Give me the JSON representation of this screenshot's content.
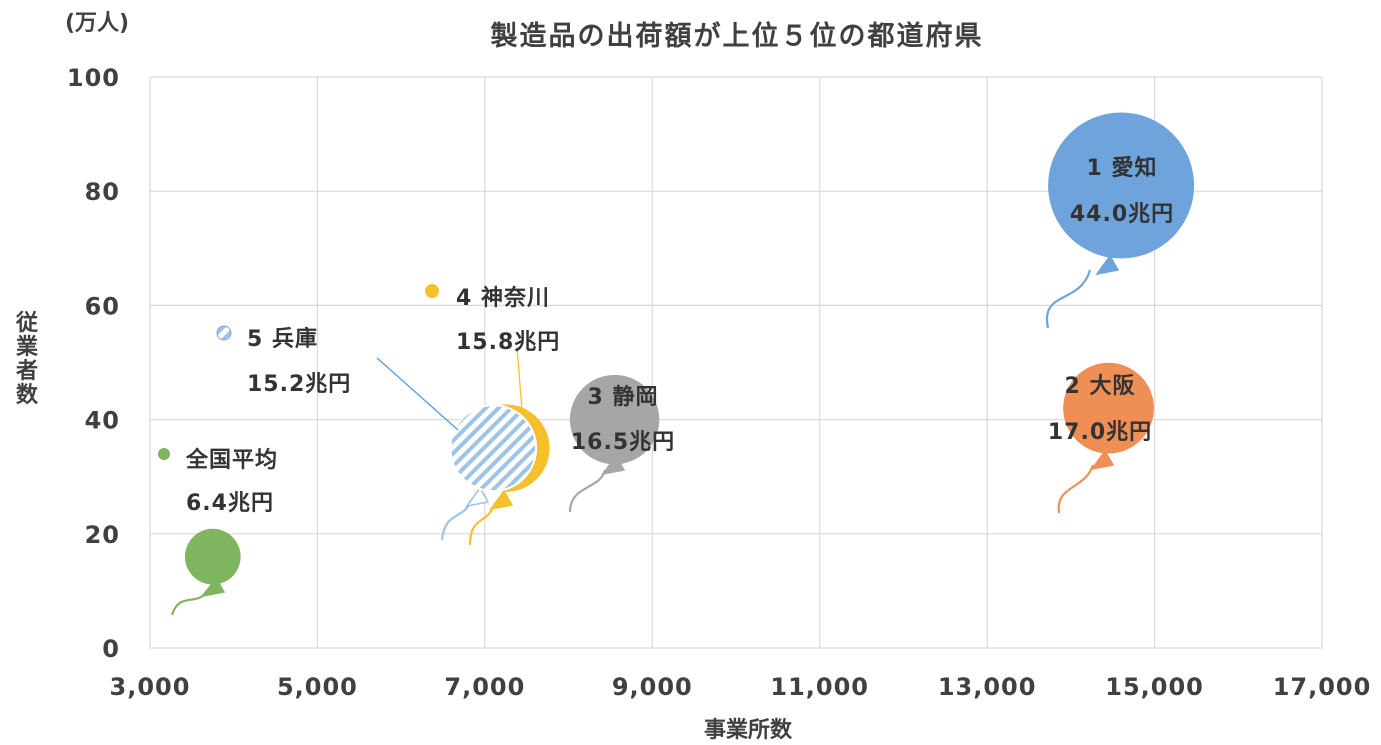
{
  "chart_data": {
    "type": "bubble",
    "title": "製造品の出荷額が上位５位の都道府県",
    "xlabel": "事業所数",
    "ylabel": "従業者数",
    "yunit": "(万人)",
    "xlim": [
      3000,
      17000
    ],
    "ylim": [
      0,
      100
    ],
    "x_ticks": [
      3000,
      5000,
      7000,
      9000,
      11000,
      13000,
      15000,
      17000
    ],
    "x_tick_labels": [
      "3,000",
      "5,000",
      "7,000",
      "9,000",
      "11,000",
      "13,000",
      "15,000",
      "17,000"
    ],
    "y_ticks": [
      0,
      20,
      40,
      60,
      80,
      100
    ],
    "y_tick_labels": [
      "0",
      "20",
      "40",
      "60",
      "80",
      "100"
    ],
    "grid": true,
    "legend": "none",
    "series": [
      {
        "key": "aichi",
        "name": "1 愛知",
        "shipment": "44.0兆円",
        "x": 14600,
        "y": 81,
        "size": 44.0,
        "color": "#6fa3dc",
        "pattern": "solid"
      },
      {
        "key": "osaka",
        "name": "2 大阪",
        "shipment": "17.0兆円",
        "x": 14450,
        "y": 42,
        "size": 17.0,
        "color": "#ef8f55",
        "pattern": "solid"
      },
      {
        "key": "shizuoka",
        "name": "3 静岡",
        "shipment": "16.5兆円",
        "x": 8550,
        "y": 40,
        "size": 16.5,
        "color": "#a6a6a6",
        "pattern": "solid"
      },
      {
        "key": "kanagawa",
        "name": "4 神奈川",
        "shipment": "15.8兆円",
        "x": 7250,
        "y": 35,
        "size": 15.8,
        "color": "#f6c02c",
        "pattern": "solid"
      },
      {
        "key": "hyogo",
        "name": "5 兵庫",
        "shipment": "15.2兆円",
        "x": 7100,
        "y": 35,
        "size": 15.2,
        "color": "#9dc3e6",
        "pattern": "stripes"
      },
      {
        "key": "average",
        "name": "全国平均",
        "shipment": "6.4兆円",
        "x": 3750,
        "y": 16,
        "size": 6.4,
        "color": "#7fb55e",
        "pattern": "solid"
      }
    ]
  }
}
